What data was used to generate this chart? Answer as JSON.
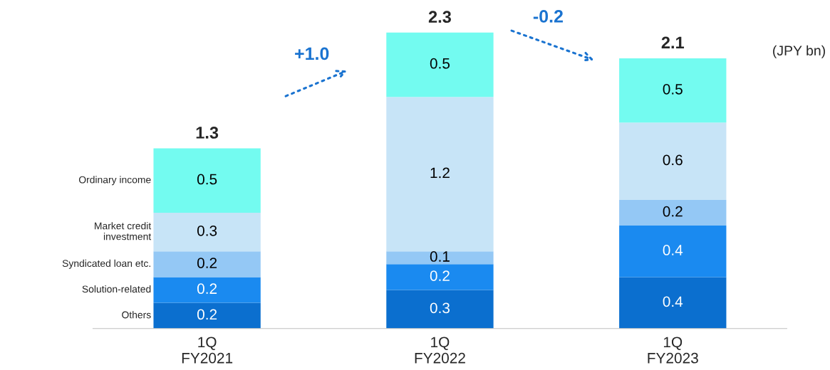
{
  "chart_data": {
    "type": "bar",
    "stacked": true,
    "data_labels": true,
    "legend": false,
    "grid": false,
    "categories": [
      "1Q\nFY2021",
      "1Q\nFY2022",
      "1Q\nFY2023"
    ],
    "series": [
      {
        "name": "Others",
        "color": "#0b6fcf",
        "values": [
          0.2,
          0.3,
          0.4
        ]
      },
      {
        "name": "Solution-related",
        "color": "#1a8af0",
        "values": [
          0.2,
          0.2,
          0.4
        ]
      },
      {
        "name": "Syndicated loan etc.",
        "color": "#94c8f5",
        "values": [
          0.2,
          0.1,
          0.2
        ]
      },
      {
        "name": "Market credit\ninvestment",
        "color": "#c7e4f7",
        "values": [
          0.3,
          1.2,
          0.6
        ]
      },
      {
        "name": "Ordinary income",
        "color": "#73fbf0",
        "values": [
          0.5,
          0.5,
          0.5
        ]
      }
    ],
    "totals": [
      "1.3",
      "2.3",
      "2.1"
    ],
    "annotations": [
      "(JPY bn)",
      "+1.0",
      "-0.2"
    ]
  }
}
